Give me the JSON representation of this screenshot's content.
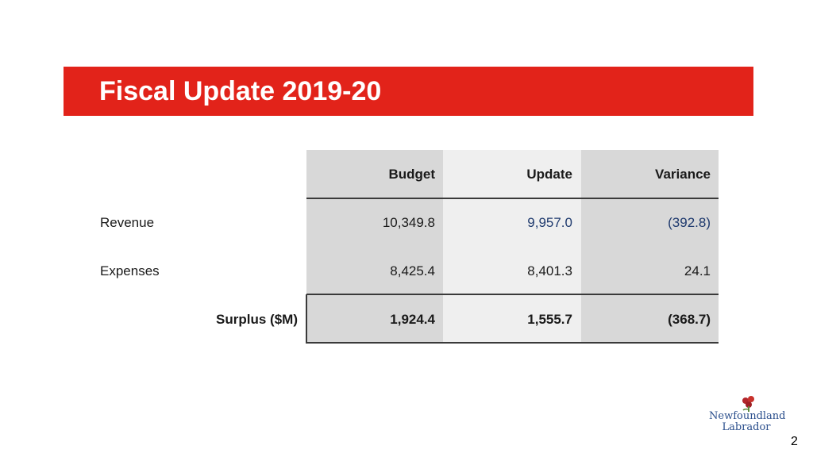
{
  "slide": {
    "title": "Fiscal Update 2019-20",
    "page_number": "2"
  },
  "table": {
    "headers": {
      "budget": "Budget",
      "update": "Update",
      "variance": "Variance"
    },
    "rows": [
      {
        "label": "Revenue",
        "budget": "10,349.8",
        "update": "9,957.0",
        "variance": "(392.8)"
      },
      {
        "label": "Expenses",
        "budget": "8,425.4",
        "update": "8,401.3",
        "variance": "24.1"
      }
    ],
    "total": {
      "label": "Surplus ($M)",
      "budget": "1,924.4",
      "update": "1,555.7",
      "variance": "(368.7)"
    }
  },
  "logo": {
    "line1": "Newfoundland",
    "line2": "Labrador",
    "icon": "pitcher-plant-icon"
  },
  "colors": {
    "title_bar": "#e2231a",
    "accent_text": "#1f3a6e"
  }
}
